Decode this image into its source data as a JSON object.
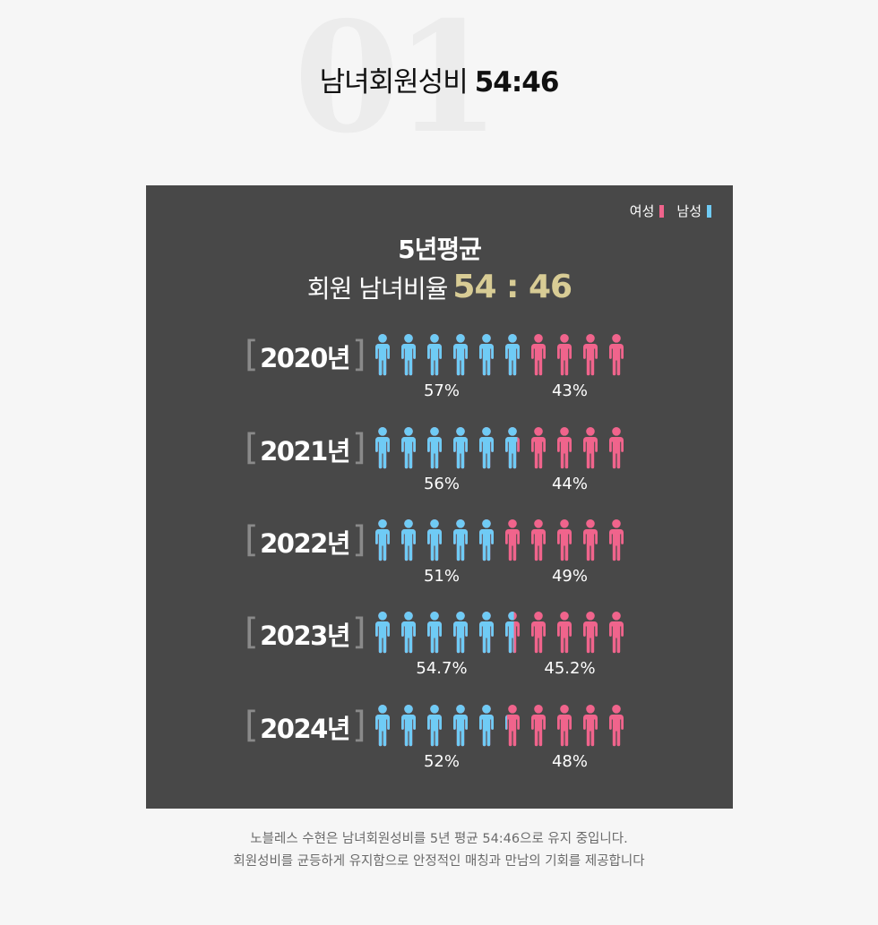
{
  "section_number": "01",
  "headline": {
    "text": "남녀회원성비",
    "ratio": "54:46"
  },
  "legend": [
    {
      "label": "여성",
      "color": "#f0648c"
    },
    {
      "label": "남성",
      "color": "#6fcbf5"
    }
  ],
  "panel": {
    "title_line1": "5년평균",
    "title_line2": "회원 남녀비율",
    "average_ratio": "54 : 46"
  },
  "chart_data": {
    "type": "bar",
    "categories": [
      "2020년",
      "2021년",
      "2022년",
      "2023년",
      "2024년"
    ],
    "series": [
      {
        "name": "남성",
        "values": [
          57,
          56,
          51,
          54.7,
          52
        ],
        "labels": [
          "57%",
          "56%",
          "51%",
          "54.7%",
          "52%"
        ],
        "color": "#6fcbf5"
      },
      {
        "name": "여성",
        "values": [
          43,
          44,
          49,
          45.2,
          48
        ],
        "labels": [
          "43%",
          "44%",
          "49%",
          "45.2%",
          "48%"
        ],
        "color": "#f0648c"
      }
    ],
    "ylim": [
      0,
      100
    ],
    "icons_per_row": 10
  },
  "rows": [
    {
      "year": "2020년",
      "male": "57%",
      "female": "43%"
    },
    {
      "year": "2021년",
      "male": "56%",
      "female": "44%"
    },
    {
      "year": "2022년",
      "male": "51%",
      "female": "49%"
    },
    {
      "year": "2023년",
      "male": "54.7%",
      "female": "45.2%"
    },
    {
      "year": "2024년",
      "male": "52%",
      "female": "48%"
    }
  ],
  "caption": {
    "line1": "노블레스 수현은 남녀회원성비를 5년 평균 54:46으로 유지 중입니다.",
    "line2": "회원성비를 균등하게 유지함으로 안정적인 매칭과 만남의 기회를 제공합니다"
  }
}
